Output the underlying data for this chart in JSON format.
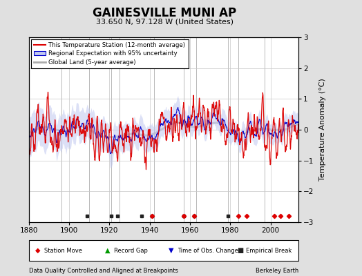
{
  "title": "GAINESVILLE MUNI AP",
  "subtitle": "33.650 N, 97.128 W (United States)",
  "ylabel": "Temperature Anomaly (°C)",
  "xlabel_left": "Data Quality Controlled and Aligned at Breakpoints",
  "xlabel_right": "Berkeley Earth",
  "year_start": 1880,
  "year_end": 2014,
  "ylim": [
    -3,
    3
  ],
  "yticks": [
    -3,
    -2,
    -1,
    0,
    1,
    2,
    3
  ],
  "xticks": [
    1880,
    1900,
    1920,
    1940,
    1960,
    1980,
    2000
  ],
  "background_color": "#e0e0e0",
  "plot_bg_color": "#ffffff",
  "grid_color": "#c8c8c8",
  "vertical_line_years": [
    1896,
    1910,
    1921,
    1925,
    1942,
    1957,
    1963,
    1979,
    1984,
    1997
  ],
  "empirical_break_years": [
    1909,
    1921,
    1924,
    1936,
    1941,
    1957,
    1962,
    1979
  ],
  "station_move_years": [
    1941,
    1957,
    1962,
    1984,
    1988,
    2002,
    2005,
    2009
  ],
  "red_line_color": "#dd0000",
  "blue_line_color": "#0000cc",
  "blue_fill_color": "#c0c8f0",
  "gray_line_color": "#aaaaaa",
  "title_fontsize": 12,
  "subtitle_fontsize": 8,
  "axis_fontsize": 7.5,
  "ylabel_fontsize": 8
}
